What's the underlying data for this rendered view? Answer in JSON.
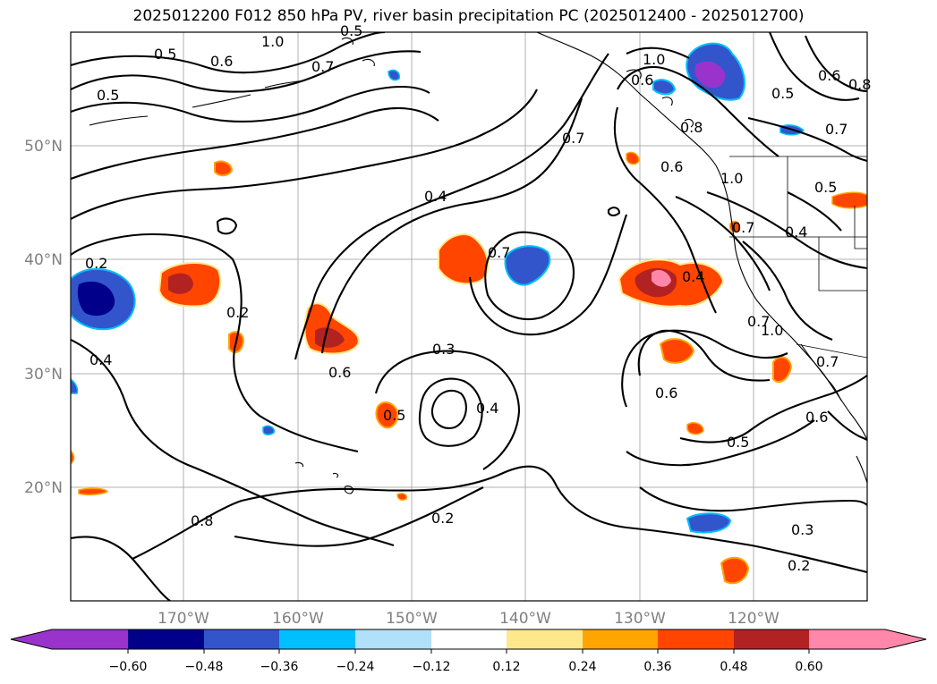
{
  "title": "2025012200 F012 850 hPa PV, river basin precipitation PC (2025012400 - 2025012700)",
  "lat_labels": [
    "50°N",
    "40°N",
    "30°N",
    "20°N"
  ],
  "lon_labels": [
    "170°W",
    "160°W",
    "150°W",
    "140°W",
    "130°W",
    "120°W"
  ],
  "colorbar": {
    "ticks": [
      "−0.60",
      "−0.48",
      "−0.36",
      "−0.24",
      "−0.12",
      "0.12",
      "0.24",
      "0.36",
      "0.48",
      "0.60"
    ],
    "colors": [
      "#9933cc",
      "#00008b",
      "#3355cc",
      "#00bfff",
      "#b0e0fa",
      "#ffffff",
      "#ffe88c",
      "#ffa500",
      "#ff4500",
      "#b22222",
      "#ff88aa"
    ]
  },
  "contour_labels": [
    "1.0",
    "0.5",
    "0.6",
    "0.7",
    "0.5",
    "0.4",
    "0.7",
    "0.2",
    "0.2",
    "0.4",
    "0.6",
    "0.7",
    "0.3",
    "0.4",
    "0.5",
    "0.6",
    "0.7",
    "0.8",
    "1.0",
    "0.6",
    "0.8",
    "0.5",
    "0.7",
    "0.4",
    "0.5",
    "0.7",
    "0.4",
    "0.7",
    "0.6",
    "0.5",
    "0.6",
    "0.3",
    "0.2",
    "0.2",
    "0.8",
    "0.6",
    "1.0",
    "0.5",
    "1.0"
  ]
}
